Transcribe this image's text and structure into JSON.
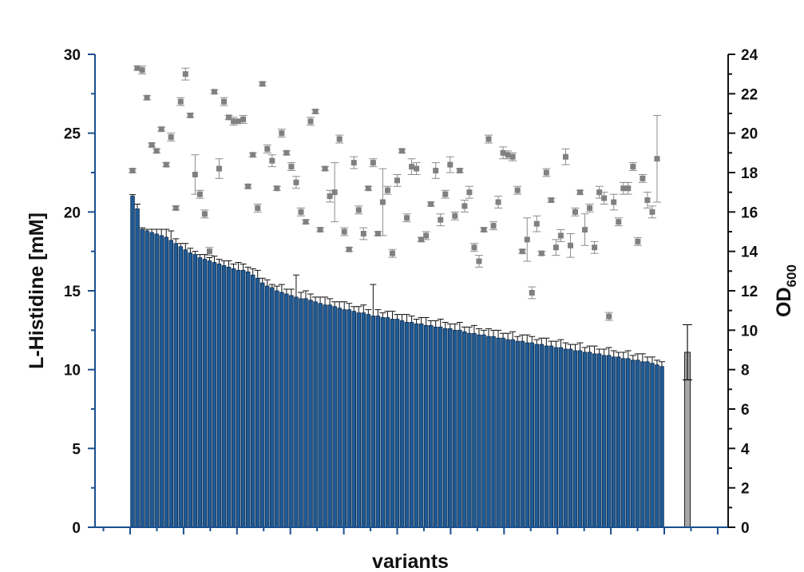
{
  "chart_data": {
    "type": "bar",
    "xlabel": "variants",
    "ylabel": "L-Histidine [mM]",
    "y2label": {
      "main": "OD",
      "subscript": "600"
    },
    "ylim": [
      0,
      30
    ],
    "y2lim": [
      0,
      24
    ],
    "yticks": [
      "0",
      "5",
      "10",
      "15",
      "20",
      "25",
      "30"
    ],
    "y2ticks": [
      "0",
      "2",
      "4",
      "6",
      "8",
      "10",
      "12",
      "14",
      "16",
      "18",
      "20",
      "22",
      "24"
    ],
    "grid": false,
    "legend": "none",
    "colors": {
      "variant_bars": "#1f5a94",
      "reference_bar": "#a6a6a6",
      "od_points": "#808080",
      "axis": "#1a4f8f"
    },
    "series": [
      {
        "type": "bar",
        "values": [
          21.0,
          20.2,
          18.9,
          18.8,
          18.7,
          18.6,
          18.5,
          18.4,
          18.2,
          18.0,
          17.8,
          17.6,
          17.4,
          17.3,
          17.1,
          17.0,
          16.9,
          16.8,
          16.7,
          16.6,
          16.5,
          16.4,
          16.3,
          16.3,
          16.2,
          16.0,
          15.8,
          15.5,
          15.3,
          15.2,
          15.0,
          14.9,
          14.8,
          14.7,
          14.6,
          14.5,
          14.5,
          14.4,
          14.3,
          14.2,
          14.1,
          14.1,
          14.0,
          13.9,
          13.8,
          13.8,
          13.7,
          13.6,
          13.6,
          13.5,
          13.4,
          13.4,
          13.3,
          13.3,
          13.2,
          13.2,
          13.1,
          13.0,
          13.0,
          12.9,
          12.9,
          12.8,
          12.8,
          12.7,
          12.7,
          12.6,
          12.6,
          12.5,
          12.5,
          12.4,
          12.3,
          12.3,
          12.2,
          12.2,
          12.1,
          12.1,
          12.0,
          12.0,
          11.9,
          11.9,
          11.8,
          11.8,
          11.7,
          11.7,
          11.6,
          11.6,
          11.5,
          11.5,
          11.4,
          11.4,
          11.3,
          11.3,
          11.2,
          11.2,
          11.1,
          11.1,
          11.0,
          11.0,
          10.9,
          10.9,
          10.8,
          10.8,
          10.7,
          10.7,
          10.6,
          10.6,
          10.5,
          10.5,
          10.4,
          10.3,
          10.2
        ],
        "errors": [
          0.1,
          0.3,
          0.1,
          0.1,
          0.2,
          0.3,
          0.4,
          0.5,
          0.6,
          0.3,
          0.2,
          0.4,
          0.3,
          0.2,
          0.2,
          0.3,
          0.2,
          0.4,
          0.3,
          0.3,
          0.4,
          0.3,
          0.5,
          0.4,
          0.3,
          0.4,
          0.5,
          0.3,
          0.4,
          0.2,
          0.3,
          0.5,
          0.3,
          0.4,
          1.4,
          0.4,
          0.5,
          0.4,
          0.3,
          0.4,
          0.5,
          0.4,
          0.3,
          0.4,
          0.5,
          0.4,
          0.3,
          0.4,
          0.5,
          0.3,
          2.0,
          0.4,
          0.3,
          0.4,
          0.5,
          0.3,
          0.4,
          0.5,
          0.4,
          0.3,
          0.4,
          0.5,
          0.3,
          0.4,
          0.5,
          0.4,
          0.3,
          0.4,
          0.5,
          0.3,
          0.4,
          0.5,
          0.4,
          0.3,
          0.5,
          0.4,
          0.5,
          0.3,
          0.4,
          0.5,
          0.3,
          0.4,
          0.5,
          0.4,
          0.3,
          0.4,
          0.5,
          0.3,
          0.4,
          0.5,
          0.4,
          0.3,
          0.4,
          0.5,
          0.3,
          0.4,
          0.5,
          0.3,
          0.4,
          0.5,
          0.4,
          0.3,
          0.4,
          0.5,
          0.3,
          0.4,
          0.5,
          0.3,
          0.4,
          0.3,
          0.3
        ]
      },
      {
        "type": "bar",
        "values": [
          11.1
        ],
        "errors": [
          1.75
        ]
      },
      {
        "type": "scatter",
        "axis": "y2",
        "values": [
          18.1,
          23.3,
          23.2,
          21.8,
          19.4,
          19.1,
          20.2,
          18.4,
          19.8,
          16.2,
          21.6,
          23.0,
          20.9,
          17.9,
          16.9,
          15.9,
          14.0,
          22.1,
          18.2,
          21.6,
          20.8,
          20.6,
          20.6,
          20.7,
          17.3,
          18.9,
          16.2,
          22.5,
          19.2,
          18.6,
          17.2,
          20.0,
          19.0,
          18.3,
          17.5,
          16.0,
          15.5,
          20.6,
          21.1,
          15.1,
          18.2,
          16.8,
          17.0,
          19.7,
          15.0,
          14.1,
          18.5,
          16.1,
          14.9,
          17.2,
          18.5,
          14.9,
          16.5,
          17.1,
          13.9,
          17.6,
          19.1,
          15.7,
          18.3,
          18.2,
          14.6,
          14.8,
          16.4,
          18.1,
          15.6,
          16.9,
          18.4,
          15.8,
          18.1,
          16.3,
          17.0,
          14.2,
          13.5,
          15.1,
          19.7,
          15.3,
          16.5,
          19.0,
          18.9,
          18.8,
          17.1,
          14.0,
          14.6,
          11.9,
          15.4,
          13.9,
          18.0,
          16.6,
          14.2,
          14.8,
          18.8,
          14.3,
          16.0,
          17.0,
          15.1,
          16.2,
          14.2,
          17.0,
          16.7,
          10.7,
          16.5,
          15.5,
          17.2,
          17.2,
          18.3,
          14.5,
          17.7,
          16.6,
          16.0,
          18.7
        ],
        "errors": [
          0.1,
          0.1,
          0.2,
          0.1,
          0.1,
          0.1,
          0.1,
          0.1,
          0.2,
          0.1,
          0.2,
          0.3,
          0.1,
          1.0,
          0.2,
          0.2,
          0.2,
          0.1,
          0.5,
          0.2,
          0.1,
          0.2,
          0.1,
          0.2,
          0.1,
          0.1,
          0.2,
          0.1,
          0.2,
          0.3,
          0.1,
          0.2,
          0.1,
          0.2,
          0.3,
          0.2,
          0.1,
          0.2,
          0.1,
          0.1,
          0.1,
          0.3,
          1.5,
          0.2,
          0.2,
          0.1,
          0.3,
          0.2,
          0.3,
          0.1,
          0.2,
          0.1,
          1.7,
          0.2,
          0.2,
          0.3,
          0.1,
          0.2,
          0.4,
          0.3,
          0.1,
          0.2,
          0.1,
          0.4,
          0.3,
          0.2,
          0.4,
          0.2,
          0.1,
          0.3,
          0.3,
          0.2,
          0.3,
          0.1,
          0.2,
          0.2,
          0.3,
          0.3,
          0.2,
          0.2,
          0.2,
          0.1,
          1.1,
          0.3,
          0.4,
          0.1,
          0.2,
          0.1,
          0.4,
          0.3,
          0.4,
          0.6,
          0.2,
          0.1,
          0.8,
          0.2,
          0.3,
          0.3,
          0.3,
          0.2,
          0.4,
          0.2,
          0.3,
          0.3,
          0.2,
          0.2,
          0.2,
          0.4,
          0.3,
          2.2
        ]
      }
    ]
  }
}
